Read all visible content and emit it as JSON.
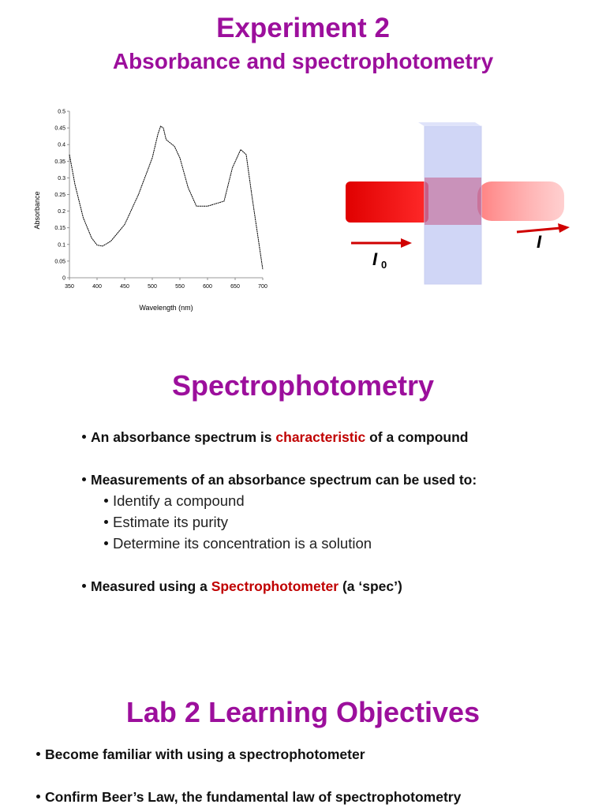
{
  "title": "Experiment 2",
  "subtitle": "Absorbance and spectrophotometry",
  "chart_data": {
    "type": "line",
    "xlabel": "Wavelength (nm)",
    "ylabel": "Absorbance",
    "color": "#000000",
    "x": [
      350,
      360,
      375,
      390,
      400,
      410,
      425,
      450,
      475,
      500,
      510,
      515,
      520,
      525,
      540,
      550,
      565,
      580,
      600,
      630,
      645,
      660,
      670,
      680,
      700
    ],
    "values": [
      0.37,
      0.28,
      0.18,
      0.12,
      0.098,
      0.095,
      0.11,
      0.16,
      0.25,
      0.36,
      0.43,
      0.455,
      0.45,
      0.415,
      0.395,
      0.36,
      0.27,
      0.215,
      0.215,
      0.23,
      0.33,
      0.385,
      0.37,
      0.25,
      0.025
    ],
    "xlim": [
      350,
      700
    ],
    "ylim": [
      0,
      0.5
    ],
    "xticks": [
      350,
      400,
      450,
      500,
      550,
      600,
      650,
      700
    ],
    "yticks": [
      0,
      0.05,
      0.1,
      0.15,
      0.2,
      0.25,
      0.3,
      0.35,
      0.4,
      0.45,
      0.5
    ]
  },
  "diagram": {
    "incident": "I",
    "incident_sub": "0",
    "transmitted": "I"
  },
  "section": {
    "heading": "Spectrophotometry",
    "bullets": [
      [
        "An absorbance spectrum is ",
        "characteristic",
        " of a compound"
      ],
      [
        "Measurements of an absorbance spectrum can be used to:"
      ],
      [
        "Measured using a ",
        "Spectrophotometer",
        " (a ‘spec’)"
      ]
    ],
    "sub_bullets": [
      "Identify a compound",
      "Estimate its purity",
      "Determine its concentration is a solution"
    ]
  },
  "objectives": {
    "heading": "Lab 2 Learning Objectives",
    "bullets": [
      "Become familiar with using a spectrophotometer",
      "Confirm Beer’s Law, the fundamental law of spectrophotometry"
    ]
  }
}
